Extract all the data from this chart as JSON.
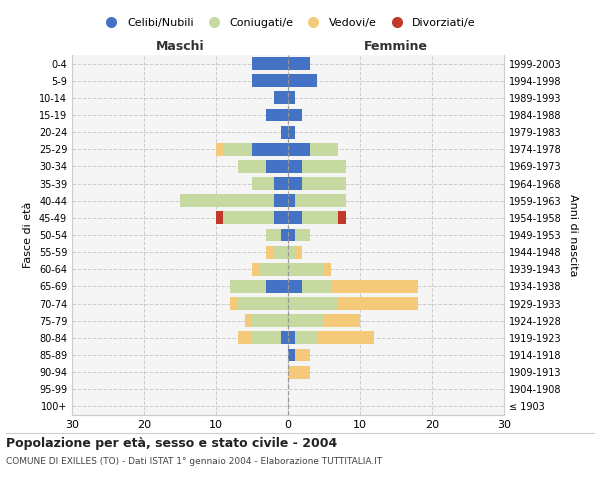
{
  "age_groups": [
    "100+",
    "95-99",
    "90-94",
    "85-89",
    "80-84",
    "75-79",
    "70-74",
    "65-69",
    "60-64",
    "55-59",
    "50-54",
    "45-49",
    "40-44",
    "35-39",
    "30-34",
    "25-29",
    "20-24",
    "15-19",
    "10-14",
    "5-9",
    "0-4"
  ],
  "birth_years": [
    "≤ 1903",
    "1904-1908",
    "1909-1913",
    "1914-1918",
    "1919-1923",
    "1924-1928",
    "1929-1933",
    "1934-1938",
    "1939-1943",
    "1944-1948",
    "1949-1953",
    "1954-1958",
    "1959-1963",
    "1964-1968",
    "1969-1973",
    "1974-1978",
    "1979-1983",
    "1984-1988",
    "1989-1993",
    "1994-1998",
    "1999-2003"
  ],
  "male": {
    "celibi": [
      0,
      0,
      0,
      0,
      1,
      0,
      0,
      3,
      0,
      0,
      1,
      2,
      2,
      2,
      3,
      5,
      1,
      3,
      2,
      5,
      5
    ],
    "coniugati": [
      0,
      0,
      0,
      0,
      4,
      5,
      7,
      5,
      4,
      2,
      2,
      7,
      13,
      3,
      4,
      4,
      0,
      0,
      0,
      0,
      0
    ],
    "vedovi": [
      0,
      0,
      0,
      0,
      2,
      1,
      1,
      0,
      1,
      1,
      0,
      0,
      0,
      0,
      0,
      1,
      0,
      0,
      0,
      0,
      0
    ],
    "divorziati": [
      0,
      0,
      0,
      0,
      0,
      0,
      0,
      0,
      0,
      0,
      0,
      1,
      0,
      0,
      0,
      0,
      0,
      0,
      0,
      0,
      0
    ]
  },
  "female": {
    "nubili": [
      0,
      0,
      0,
      1,
      1,
      0,
      0,
      2,
      0,
      0,
      1,
      2,
      1,
      2,
      2,
      3,
      1,
      2,
      1,
      4,
      3
    ],
    "coniugate": [
      0,
      0,
      0,
      0,
      3,
      5,
      7,
      4,
      5,
      1,
      2,
      5,
      7,
      6,
      6,
      4,
      0,
      0,
      0,
      0,
      0
    ],
    "vedove": [
      0,
      0,
      3,
      2,
      8,
      5,
      11,
      12,
      1,
      1,
      0,
      0,
      0,
      0,
      0,
      0,
      0,
      0,
      0,
      0,
      0
    ],
    "divorziate": [
      0,
      0,
      0,
      0,
      0,
      0,
      0,
      0,
      0,
      0,
      0,
      1,
      0,
      0,
      0,
      0,
      0,
      0,
      0,
      0,
      0
    ]
  },
  "colors": {
    "celibi": "#4472c4",
    "coniugati": "#c5d9a0",
    "vedovi": "#f5c97a",
    "divorziati": "#c0392b"
  },
  "title": "Popolazione per età, sesso e stato civile - 2004",
  "subtitle": "COMUNE DI EXILLES (TO) - Dati ISTAT 1° gennaio 2004 - Elaborazione TUTTITALIA.IT",
  "xlabel_left": "Maschi",
  "xlabel_right": "Femmine",
  "ylabel_left": "Fasce di età",
  "ylabel_right": "Anni di nascita",
  "xlim": 30,
  "legend_labels": [
    "Celibi/Nubili",
    "Coniugati/e",
    "Vedovi/e",
    "Divorziati/e"
  ],
  "background_color": "#ffffff",
  "ax_bg": "#f5f5f5"
}
